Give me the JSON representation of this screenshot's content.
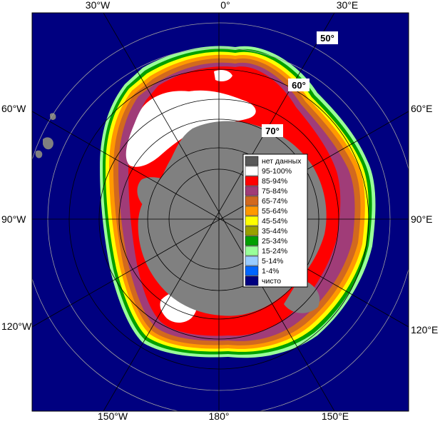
{
  "map": {
    "longitude_labels": {
      "top": [
        "30°W",
        "0°",
        "30°E"
      ],
      "bottom": [
        "150°W",
        "180°",
        "150°E"
      ],
      "left": [
        "60°W",
        "90°W",
        "120°W"
      ],
      "right": [
        "60°E",
        "90°E",
        "120°E"
      ]
    },
    "latitude_labels": [
      "50°",
      "60°",
      "70°"
    ]
  },
  "legend": {
    "items": [
      {
        "label": "нет данных",
        "color": "#595959"
      },
      {
        "label": "95-100%",
        "color": "#ffffff"
      },
      {
        "label": "85-94%",
        "color": "#ff0000"
      },
      {
        "label": "75-84%",
        "color": "#a03c78"
      },
      {
        "label": "65-74%",
        "color": "#d2691e"
      },
      {
        "label": "55-64%",
        "color": "#ff9900"
      },
      {
        "label": "45-54%",
        "color": "#ffff00"
      },
      {
        "label": "35-44%",
        "color": "#99a000"
      },
      {
        "label": "25-34%",
        "color": "#00a000"
      },
      {
        "label": "15-24%",
        "color": "#99ff99"
      },
      {
        "label": "5-14%",
        "color": "#99ccff"
      },
      {
        "label": "1-4%",
        "color": "#0066ff"
      },
      {
        "label": "чисто",
        "color": "#000080"
      }
    ]
  },
  "colors": {
    "ocean": "#000080",
    "land": "#808080",
    "frame": "#000000",
    "graticule_inner": "#000000",
    "graticule_outer": "#a0a0a0"
  }
}
